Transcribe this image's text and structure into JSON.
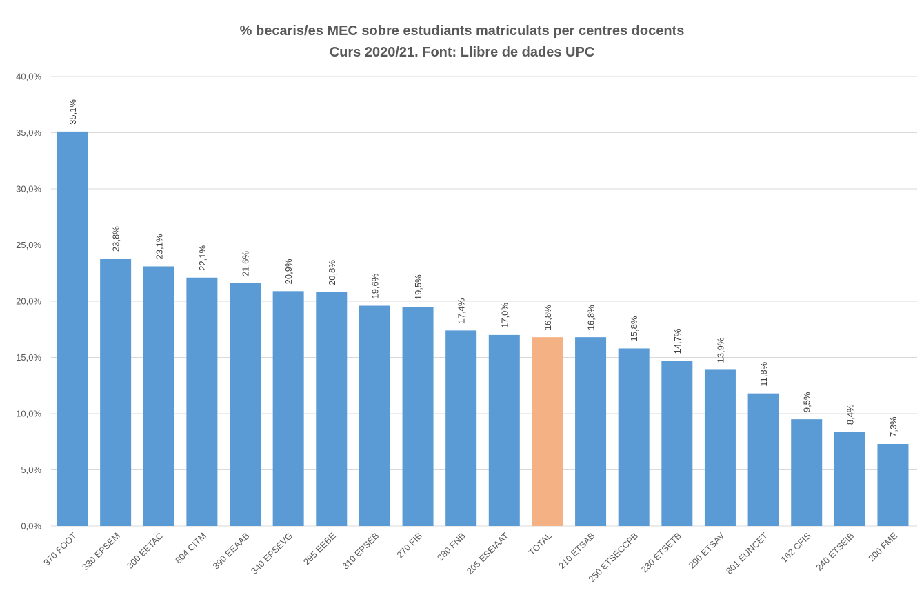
{
  "chart_data": {
    "type": "bar",
    "title": "% becaris/es MEC sobre estudiants matriculats per centres docents",
    "subtitle": "Curs 2020/21. Font: Llibre de dades UPC",
    "xlabel": "",
    "ylabel": "",
    "ylim": [
      0,
      40
    ],
    "yticks": [
      "0,0%",
      "5,0%",
      "10,0%",
      "15,0%",
      "20,0%",
      "25,0%",
      "30,0%",
      "35,0%",
      "40,0%"
    ],
    "grid": true,
    "legend": "none",
    "categories": [
      "370 FOOT",
      "330 EPSEM",
      "300 EETAC",
      "804 CITM",
      "390 EEAAB",
      "340 EPSEVG",
      "295 EEBE",
      "310 EPSEB",
      "270 FIB",
      "280 FNB",
      "205 ESEIAAT",
      "TOTAL",
      "210 ETSAB",
      "250 ETSECCPB",
      "230 ETSETB",
      "290 ETSAV",
      "801 EUNCET",
      "162 CFIS",
      "240 ETSEIB",
      "200 FME"
    ],
    "values": [
      35.1,
      23.8,
      23.1,
      22.1,
      21.6,
      20.9,
      20.8,
      19.6,
      19.5,
      17.4,
      17.0,
      16.8,
      16.8,
      15.8,
      14.7,
      13.9,
      11.8,
      9.5,
      8.4,
      7.3
    ],
    "data_labels": [
      "35,1%",
      "23,8%",
      "23,1%",
      "22,1%",
      "21,6%",
      "20,9%",
      "20,8%",
      "19,6%",
      "19,5%",
      "17,4%",
      "17,0%",
      "16,8%",
      "16,8%",
      "15,8%",
      "14,7%",
      "13,9%",
      "11,8%",
      "9,5%",
      "8,4%",
      "7,3%"
    ],
    "colors": {
      "bar": "#5b9bd5",
      "highlight": "#f4b183",
      "highlight_category": "TOTAL"
    }
  }
}
